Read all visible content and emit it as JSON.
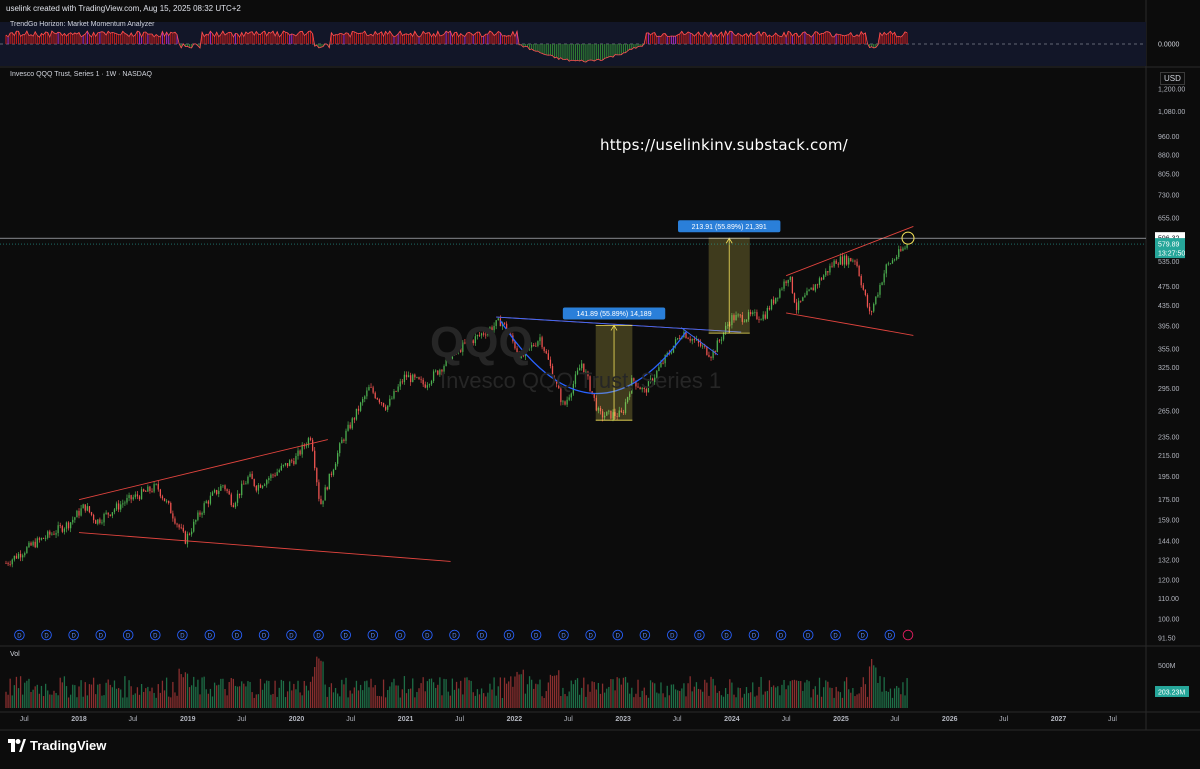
{
  "header": {
    "caption": "uselink created with TradingView.com, Aug 15, 2025 08:32 UTC+2",
    "indicator_name": "TrendGo Horizon: Market Momentum Analyzer",
    "indicator_zero": "0.0000",
    "symbol_line": "Invesco QQQ Trust, Series 1 · 1W · NASDAQ",
    "currency": "USD",
    "volume_label": "Vol"
  },
  "overlay": {
    "url": "https://uselinkinv.substack.com/",
    "watermark_symbol": "QQQ",
    "watermark_name": "Invesco QQQ Trust, Series 1"
  },
  "measure_boxes": [
    {
      "label": "141.89 (55.89%) 14,189",
      "x0": "2022-10-01",
      "x1": "2023-02-01",
      "y0": 254,
      "y1": 396
    },
    {
      "label": "213.91 (55.89%) 21,391",
      "x0": "2023-10-15",
      "x1": "2024-03-01",
      "y0": 382,
      "y1": 596
    }
  ],
  "price_tags": {
    "high_line": "596.32",
    "last_price": "579.89",
    "countdown": "13:27:50",
    "volume_last": "203.23M",
    "volume_axis": "500M"
  },
  "brand": {
    "name": "TradingView"
  },
  "colors": {
    "up": "#26a69a",
    "up_bright": "#4caf50",
    "down": "#ef5350",
    "trendline": "#e0443e",
    "cup": "#2962ff",
    "measure": "#f5e35a",
    "tag_blue": "#2a7fd9",
    "tag_green": "#26a69a",
    "indicator_purple": "#9c27b0"
  },
  "chart_data": {
    "type": "candlestick",
    "title": "Invesco QQQ Trust, Series 1 · 1W · NASDAQ",
    "y_scale": "log",
    "ylim": [
      88,
      1300
    ],
    "y_ticks": [
      91.5,
      100,
      110,
      120,
      132,
      144,
      159,
      175,
      195,
      215,
      235,
      265,
      295,
      325,
      355,
      395,
      435,
      475,
      535,
      595,
      655,
      730,
      805,
      880,
      960,
      1080,
      1200
    ],
    "y_tick_labels": [
      "91.50",
      "100.00",
      "110.00",
      "120.00",
      "132.00",
      "144.00",
      "159.00",
      "175.00",
      "195.00",
      "215.00",
      "235.00",
      "265.00",
      "295.00",
      "325.00",
      "355.00",
      "395.00",
      "435.00",
      "475.00",
      "535.00",
      "",
      "655.00",
      "730.00",
      "805.00",
      "880.00",
      "960.00",
      "1,080.00",
      "1,200.00"
    ],
    "x_range": [
      "2017-05-01",
      "2027-10-15"
    ],
    "x_ticks": [
      {
        "date": "2017-07-01",
        "label": "Jul"
      },
      {
        "date": "2018-01-01",
        "label": "2018"
      },
      {
        "date": "2018-07-01",
        "label": "Jul"
      },
      {
        "date": "2019-01-01",
        "label": "2019"
      },
      {
        "date": "2019-07-01",
        "label": "Jul"
      },
      {
        "date": "2020-01-01",
        "label": "2020"
      },
      {
        "date": "2020-07-01",
        "label": "Jul"
      },
      {
        "date": "2021-01-01",
        "label": "2021"
      },
      {
        "date": "2021-07-01",
        "label": "Jul"
      },
      {
        "date": "2022-01-01",
        "label": "2022"
      },
      {
        "date": "2022-07-01",
        "label": "Jul"
      },
      {
        "date": "2023-01-01",
        "label": "2023"
      },
      {
        "date": "2023-07-01",
        "label": "Jul"
      },
      {
        "date": "2024-01-01",
        "label": "2024"
      },
      {
        "date": "2024-07-01",
        "label": "Jul"
      },
      {
        "date": "2025-01-01",
        "label": "2025"
      },
      {
        "date": "2025-07-01",
        "label": "Jul"
      },
      {
        "date": "2026-01-01",
        "label": "2026"
      },
      {
        "date": "2026-07-01",
        "label": "Jul"
      },
      {
        "date": "2027-01-01",
        "label": "2027"
      },
      {
        "date": "2027-07-01",
        "label": "Jul"
      }
    ],
    "close_path": [
      [
        "2017-05-01",
        130
      ],
      [
        "2017-08-01",
        142
      ],
      [
        "2017-12-01",
        157
      ],
      [
        "2018-01-20",
        170
      ],
      [
        "2018-03-01",
        158
      ],
      [
        "2018-06-01",
        173
      ],
      [
        "2018-09-20",
        186
      ],
      [
        "2018-11-01",
        168
      ],
      [
        "2018-12-24",
        145
      ],
      [
        "2019-03-01",
        172
      ],
      [
        "2019-05-01",
        188
      ],
      [
        "2019-06-01",
        172
      ],
      [
        "2019-07-25",
        195
      ],
      [
        "2019-08-20",
        186
      ],
      [
        "2019-12-31",
        213
      ],
      [
        "2020-02-19",
        237
      ],
      [
        "2020-03-20",
        170
      ],
      [
        "2020-06-01",
        230
      ],
      [
        "2020-09-01",
        295
      ],
      [
        "2020-10-30",
        270
      ],
      [
        "2020-12-31",
        313
      ],
      [
        "2021-03-05",
        300
      ],
      [
        "2021-07-01",
        355
      ],
      [
        "2021-11-19",
        405
      ],
      [
        "2022-01-25",
        340
      ],
      [
        "2022-03-29",
        375
      ],
      [
        "2022-06-16",
        270
      ],
      [
        "2022-08-16",
        333
      ],
      [
        "2022-10-13",
        260
      ],
      [
        "2022-12-28",
        261
      ],
      [
        "2023-02-02",
        308
      ],
      [
        "2023-03-13",
        290
      ],
      [
        "2023-07-19",
        385
      ],
      [
        "2023-10-26",
        345
      ],
      [
        "2023-12-29",
        410
      ],
      [
        "2024-04-19",
        415
      ],
      [
        "2024-07-10",
        502
      ],
      [
        "2024-08-05",
        430
      ],
      [
        "2024-12-16",
        538
      ],
      [
        "2025-02-19",
        540
      ],
      [
        "2025-04-08",
        415
      ],
      [
        "2025-06-01",
        520
      ],
      [
        "2025-08-14",
        580
      ]
    ],
    "indicator": {
      "zero": 0,
      "ylim": [
        -1.3,
        1.0
      ]
    },
    "trendlines": [
      {
        "p1": [
          "2018-01-01",
          175
        ],
        "p2": [
          "2020-04-15",
          232
        ]
      },
      {
        "p1": [
          "2018-01-01",
          150
        ],
        "p2": [
          "2021-06-01",
          131
        ]
      },
      {
        "p1": [
          "2021-11-01",
          412
        ],
        "p2": [
          "2024-02-01",
          384
        ]
      },
      {
        "p1": [
          "2024-07-01",
          500
        ],
        "p2": [
          "2025-09-01",
          630
        ]
      },
      {
        "p1": [
          "2024-07-01",
          420
        ],
        "p2": [
          "2025-09-01",
          378
        ]
      }
    ],
    "dividend_markers": "quarterly"
  }
}
